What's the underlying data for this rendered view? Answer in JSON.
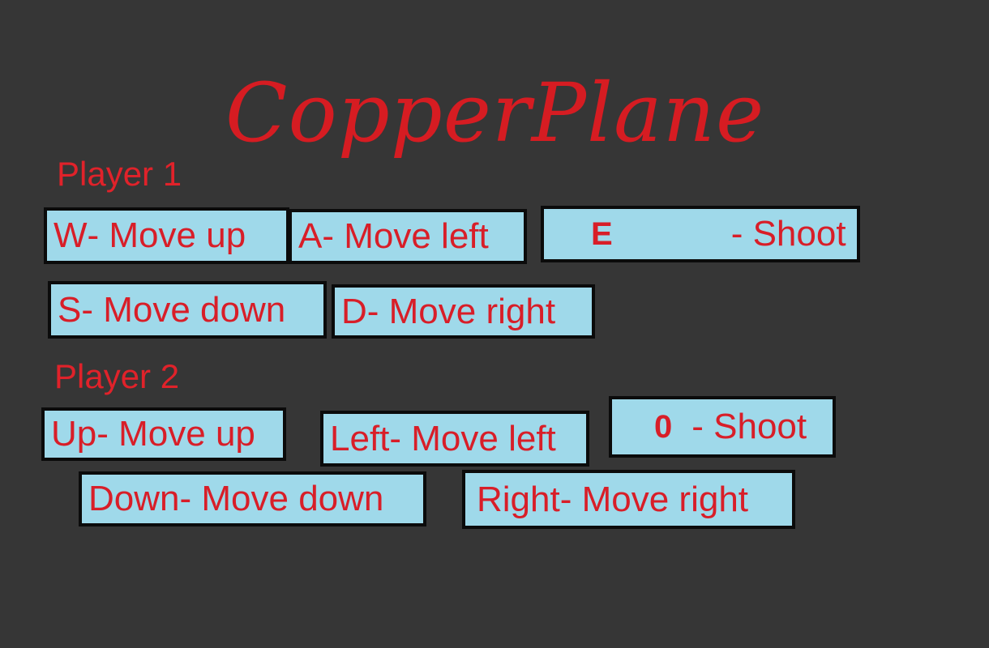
{
  "title": "CopperPlane",
  "player1": {
    "label": "Player 1",
    "up": {
      "key": "W",
      "action": " - Move up"
    },
    "left": {
      "key": "A",
      "action": " - Move left"
    },
    "shoot": {
      "key": "E",
      "action": "- Shoot"
    },
    "down": {
      "key": "S",
      "action": " - Move down"
    },
    "right": {
      "key": "D",
      "action": " - Move right"
    }
  },
  "player2": {
    "label": "Player 2",
    "up": {
      "key": "Up",
      "action": " - Move up"
    },
    "left": {
      "key": "Left",
      "action": " - Move left"
    },
    "shoot": {
      "key": "0",
      "action": "- Shoot"
    },
    "down": {
      "key": "Down",
      "action": " - Move down"
    },
    "right": {
      "key": "Right",
      "action": " - Move right"
    }
  },
  "colors": {
    "background": "#363636",
    "key_fill": "#9fd9ea",
    "text_red": "#d81e28",
    "border": "#0b0b0b"
  }
}
